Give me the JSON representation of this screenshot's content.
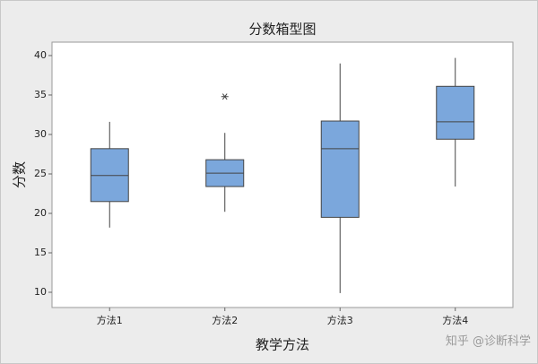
{
  "chart_data": {
    "type": "box",
    "title": "分数箱型图",
    "x_label": "教学方法",
    "y_label": "分数",
    "categories": [
      "方法1",
      "方法2",
      "方法3",
      "方法4"
    ],
    "boxes": [
      {
        "min": 18.2,
        "q1": 21.5,
        "median": 24.8,
        "q3": 28.2,
        "max": 31.6,
        "outliers": []
      },
      {
        "min": 20.2,
        "q1": 23.4,
        "median": 25.1,
        "q3": 26.8,
        "max": 30.2,
        "outliers": [
          34.8
        ]
      },
      {
        "min": 9.9,
        "q1": 19.5,
        "median": 28.2,
        "q3": 31.7,
        "max": 39.0,
        "outliers": []
      },
      {
        "min": 23.4,
        "q1": 29.4,
        "median": 31.6,
        "q3": 36.1,
        "max": 39.7,
        "outliers": []
      }
    ],
    "color": "#7ba7dc",
    "ylim": [
      8.07,
      41.7
    ],
    "yticks": [
      10,
      15,
      20,
      25,
      30,
      35,
      40
    ],
    "watermark": "知乎 @诊断科学"
  }
}
